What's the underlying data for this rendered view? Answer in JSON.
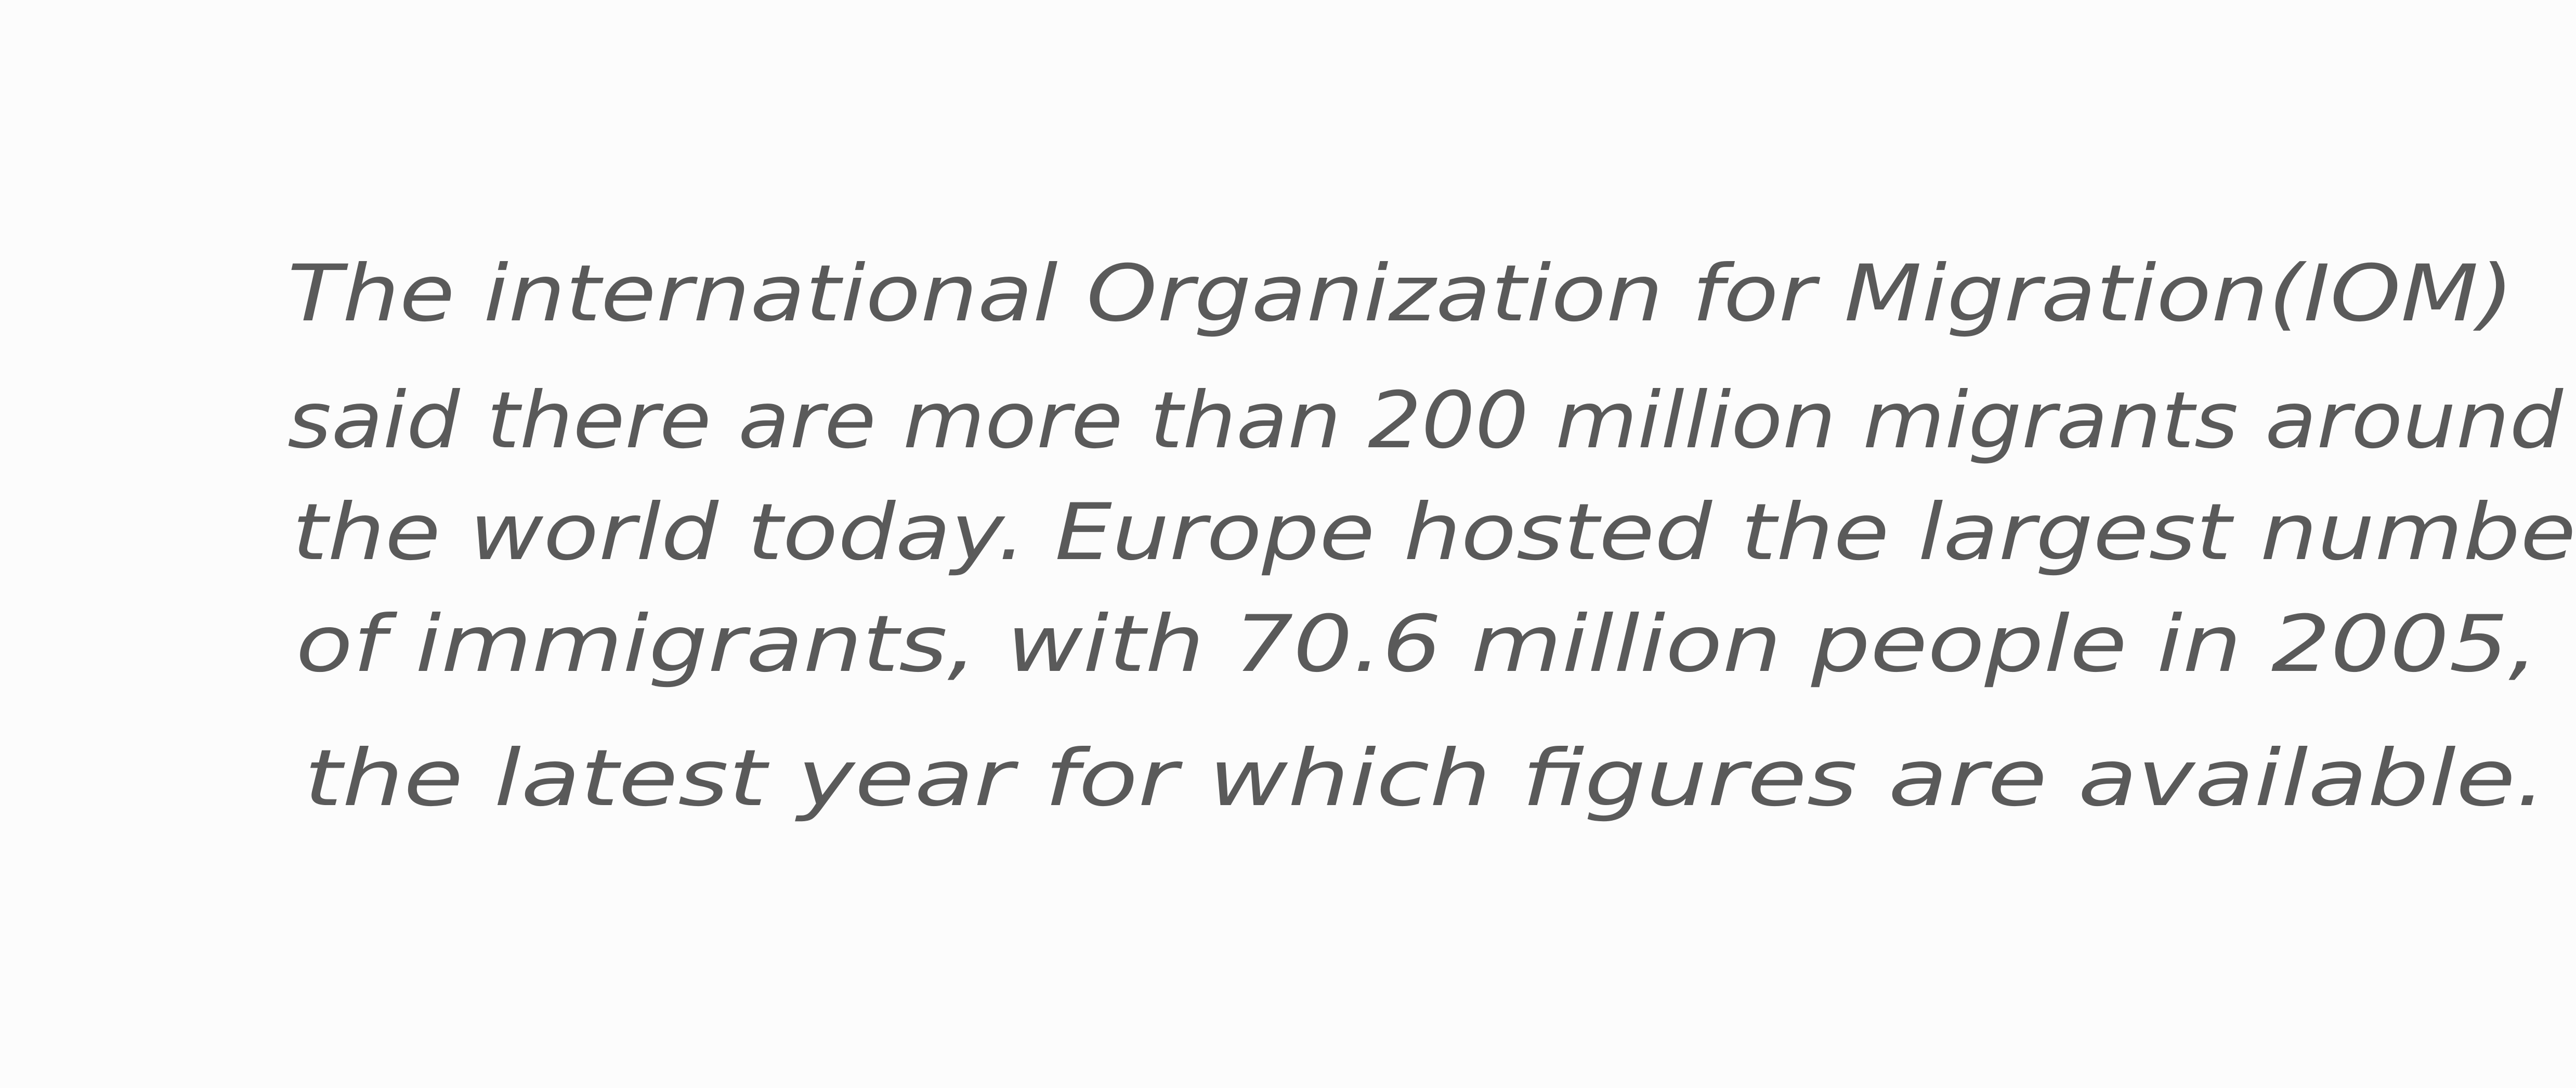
{
  "lines": [
    "The international Organization for Migration(IOM)",
    "said there are more than 200 million migrants around",
    "the world today. Europe hosted the largest numbe",
    "of immigrants, with 70.6 million people in 2005,",
    "the latest year for which figures are available."
  ]
}
